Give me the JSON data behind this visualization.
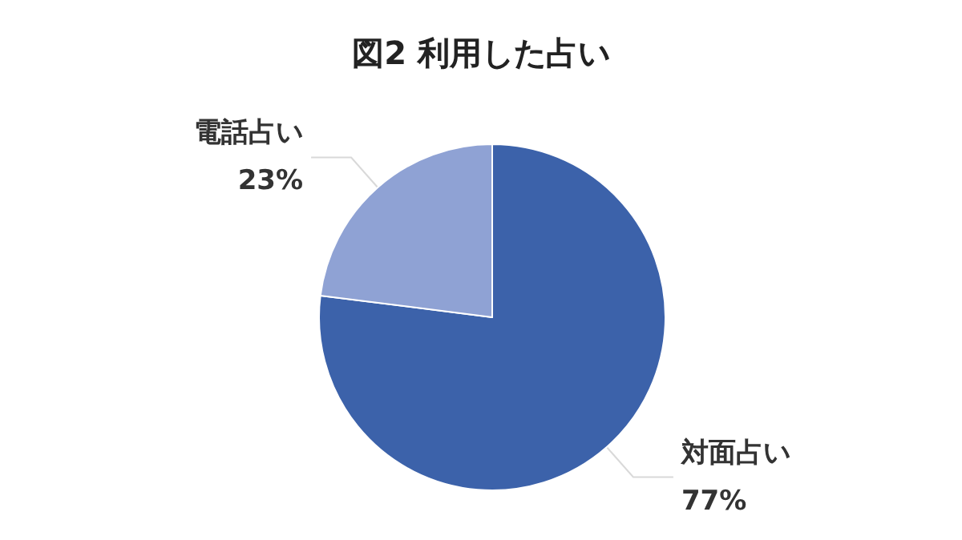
{
  "chart_data": {
    "type": "pie",
    "title": "図2 利用した占い",
    "categories": [
      "対面占い",
      "電話占い"
    ],
    "values": [
      77,
      23
    ],
    "value_labels": [
      "77%",
      "23%"
    ],
    "colors": [
      "#3c62aa",
      "#8fa2d4"
    ],
    "legend": false
  }
}
